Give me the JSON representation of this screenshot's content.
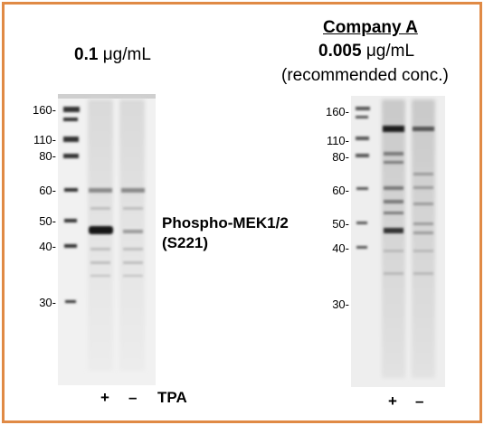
{
  "left_panel": {
    "concentration_value": "0.1",
    "concentration_unit": "μg/mL",
    "mw_markers": [
      "160-",
      "110-",
      "80-",
      "60-",
      "50-",
      "40-",
      "30-"
    ],
    "target_line1": "Phospho-MEK1/2",
    "target_line2": "(S221)",
    "lane_plus": "+",
    "lane_minus": "–",
    "treatment_label": "TPA"
  },
  "right_panel": {
    "company": "Company A",
    "concentration_value": "0.005",
    "concentration_unit": "μg/mL",
    "note": "(recommended conc.)",
    "mw_markers": [
      "160-",
      "110-",
      "80-",
      "60-",
      "50-",
      "40-",
      "30-"
    ],
    "lane_plus": "+",
    "lane_minus": "–"
  },
  "colors": {
    "border": "#e08a45",
    "blot_background": "#f0f0f0",
    "band": "#222222"
  }
}
